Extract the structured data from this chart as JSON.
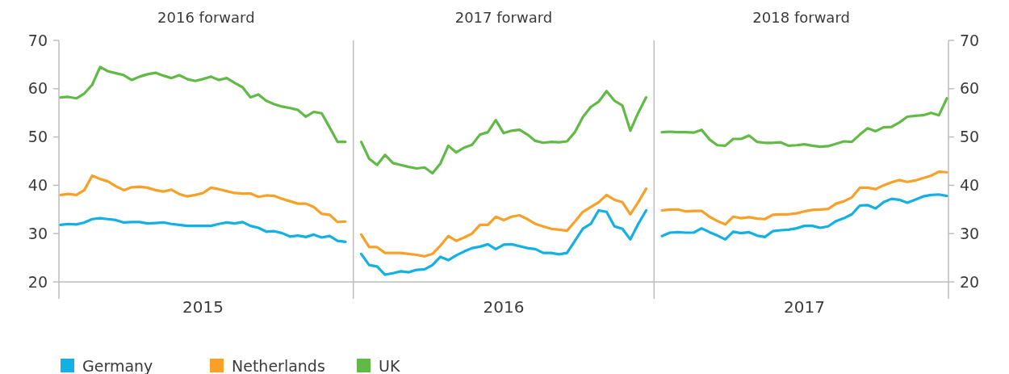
{
  "chart_data": {
    "type": "line",
    "categories": [
      null,
      null,
      null,
      null,
      null,
      null,
      null,
      null,
      null,
      null,
      null,
      null,
      null,
      null,
      null,
      null,
      null,
      null,
      "2015",
      null,
      null,
      null,
      null,
      null,
      null,
      null,
      null,
      null,
      null,
      null,
      null,
      null,
      null,
      null,
      null,
      null,
      null,
      null,
      null,
      null,
      null,
      null,
      null,
      null,
      null,
      null,
      null,
      null,
      null,
      null,
      null,
      null,
      null,
      null,
      null,
      null,
      "2016",
      null,
      null,
      null,
      null,
      null,
      null,
      null,
      null,
      null,
      null,
      null,
      null,
      null,
      null,
      null,
      null,
      null,
      null,
      null,
      null,
      null,
      null,
      null,
      null,
      null,
      null,
      null,
      null,
      null,
      null,
      null,
      null,
      null,
      null,
      null,
      null,
      null,
      "2017",
      null,
      null,
      null,
      null,
      null,
      null,
      null,
      null,
      null,
      null,
      null,
      null,
      null,
      null,
      null,
      null,
      null,
      null
    ],
    "series": [
      {
        "name": "Germany",
        "color": "#12b0e3",
        "values": [
          31.8,
          32,
          31.9,
          32.3,
          33,
          33.2,
          33,
          32.8,
          32.3,
          32.4,
          32.4,
          32.1,
          32.2,
          32.3,
          32,
          31.8,
          31.6,
          31.6,
          31.6,
          31.6,
          32,
          32.3,
          32.1,
          32.4,
          31.6,
          31.2,
          30.4,
          30.5,
          30.1,
          29.4,
          29.6,
          29.3,
          29.8,
          29.2,
          29.5,
          28.5,
          28.3,
          null,
          25.8,
          23.5,
          23.2,
          21.5,
          21.8,
          22.2,
          22,
          22.5,
          22.6,
          23.5,
          25.2,
          24.5,
          25.5,
          26.3,
          27,
          27.3,
          27.8,
          26.8,
          27.7,
          27.8,
          27.4,
          27,
          26.8,
          26,
          26,
          25.7,
          26,
          28.5,
          31,
          32,
          34.8,
          34.5,
          31.5,
          31,
          28.8,
          32,
          34.8,
          null,
          29.5,
          30.2,
          30.3,
          30.2,
          30.2,
          31.1,
          30.3,
          29.6,
          28.8,
          30.4,
          30.1,
          30.3,
          29.6,
          29.3,
          30.5,
          30.7,
          30.8,
          31.1,
          31.6,
          31.6,
          31.2,
          31.5,
          32.6,
          33.2,
          34,
          35.8,
          35.9,
          35.2,
          36.5,
          37.2,
          37,
          36.4,
          37,
          37.7,
          38,
          38.1,
          37.8
        ]
      },
      {
        "name": "Netherlands",
        "color": "#f7a128",
        "values": [
          38,
          38.2,
          38,
          39,
          42,
          41.3,
          40.8,
          39.8,
          39,
          39.6,
          39.7,
          39.5,
          39,
          38.7,
          39.1,
          38.2,
          37.7,
          38,
          38.4,
          39.5,
          39.2,
          38.8,
          38.4,
          38.3,
          38.3,
          37.6,
          37.9,
          37.8,
          37.2,
          36.7,
          36.2,
          36.2,
          35.5,
          34.1,
          33.9,
          32.4,
          32.5,
          null,
          29.8,
          27.2,
          27.2,
          26,
          26,
          26,
          25.8,
          25.6,
          25.3,
          25.8,
          27.5,
          29.5,
          28.5,
          29.2,
          30,
          31.8,
          31.8,
          33.5,
          32.8,
          33.5,
          33.8,
          33,
          32,
          31.5,
          31,
          30.8,
          30.6,
          32.5,
          34.5,
          35.5,
          36.5,
          38,
          37,
          36.5,
          34,
          36.5,
          39.3,
          null,
          34.8,
          35,
          35,
          34.6,
          34.7,
          34.7,
          33.5,
          32.6,
          31.9,
          33.5,
          33.2,
          33.4,
          33.1,
          33,
          33.9,
          34,
          34,
          34.2,
          34.6,
          34.9,
          35,
          35.1,
          36.2,
          36.7,
          37.5,
          39.5,
          39.5,
          39.2,
          40,
          40.6,
          41.1,
          40.7,
          41,
          41.5,
          42,
          42.8,
          42.7
        ]
      },
      {
        "name": "UK",
        "color": "#62ba46",
        "values": [
          58.2,
          58.3,
          58,
          59,
          60.8,
          64.5,
          63.6,
          63.2,
          62.8,
          61.8,
          62.5,
          63,
          63.3,
          62.7,
          62.2,
          62.8,
          62,
          61.6,
          62,
          62.5,
          61.8,
          62.2,
          61.2,
          60.3,
          58.2,
          58.8,
          57.5,
          56.8,
          56.3,
          56,
          55.6,
          54.2,
          55.2,
          54.9,
          52,
          49,
          49,
          null,
          49,
          45.5,
          44.2,
          46.3,
          44.6,
          44.2,
          43.8,
          43.5,
          43.7,
          42.5,
          44.5,
          48.2,
          46.8,
          47.8,
          48.4,
          50.5,
          51,
          53.5,
          50.8,
          51.3,
          51.5,
          50.5,
          49.2,
          48.8,
          49,
          48.9,
          49.1,
          51,
          54.1,
          56.2,
          57.3,
          59.5,
          57.5,
          56.5,
          51.3,
          55,
          58.2,
          null,
          51,
          51.1,
          51,
          51,
          50.9,
          51.5,
          49.5,
          48.3,
          48.2,
          49.6,
          49.6,
          50.3,
          49,
          48.8,
          48.8,
          48.9,
          48.2,
          48.3,
          48.5,
          48.2,
          48,
          48.1,
          48.6,
          49.1,
          49,
          50.5,
          51.8,
          51.2,
          52,
          52.1,
          53,
          54.2,
          54.4,
          54.5,
          55,
          54.5,
          58
        ]
      }
    ],
    "annotations": [
      "2016 forward",
      "2017 forward",
      "2018 forward"
    ],
    "ylim": [
      20,
      70
    ],
    "yticks": [
      20,
      30,
      40,
      50,
      60,
      70
    ],
    "y2lim": [
      20,
      70
    ],
    "y2ticks": [
      20,
      30,
      40,
      50,
      60,
      70
    ],
    "grid": false,
    "legend": "bottom"
  }
}
